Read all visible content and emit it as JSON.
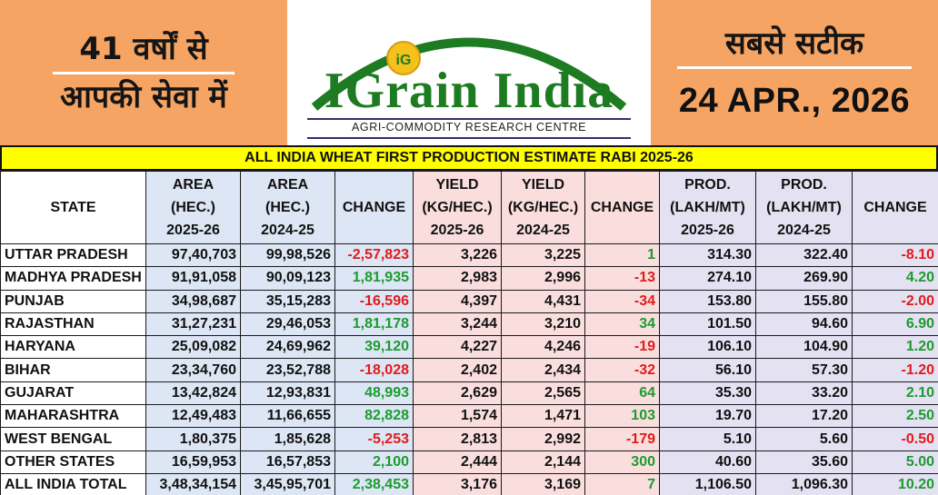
{
  "header": {
    "left_line1": "41 वर्षों से",
    "left_line2": "आपकी सेवा में",
    "right_line1": "सबसे सटीक",
    "date": "24 APR., 2026",
    "logo_name": "IGrain India",
    "logo_badge": "iG",
    "logo_tagline": "AGRI-COMMODITY RESEARCH CENTRE"
  },
  "title": "ALL INDIA WHEAT FIRST PRODUCTION ESTIMATE RABI 2025-26",
  "columns": {
    "state": "STATE",
    "area_a": [
      "AREA",
      "(HEC.)",
      "2025-26"
    ],
    "area_b": [
      "AREA",
      "(HEC.)",
      "2024-25"
    ],
    "change1": "CHANGE",
    "yield_a": [
      "YIELD",
      "(KG/HEC.)",
      "2025-26"
    ],
    "yield_b": [
      "YIELD",
      "(KG/HEC.)",
      "2024-25"
    ],
    "change2": "CHANGE",
    "prod_a": [
      "PROD.",
      "(LAKH/MT)",
      "2025-26"
    ],
    "prod_b": [
      "PROD.",
      "(LAKH/MT)",
      "2024-25"
    ],
    "change3": "CHANGE"
  },
  "rows": [
    [
      "UTTAR PRADESH",
      "97,40,703",
      "99,98,526",
      "-2,57,823",
      "3,226",
      "3,225",
      "1",
      "314.30",
      "322.40",
      "-8.10"
    ],
    [
      "MADHYA PRADESH",
      "91,91,058",
      "90,09,123",
      "1,81,935",
      "2,983",
      "2,996",
      "-13",
      "274.10",
      "269.90",
      "4.20"
    ],
    [
      "PUNJAB",
      "34,98,687",
      "35,15,283",
      "-16,596",
      "4,397",
      "4,431",
      "-34",
      "153.80",
      "155.80",
      "-2.00"
    ],
    [
      "RAJASTHAN",
      "31,27,231",
      "29,46,053",
      "1,81,178",
      "3,244",
      "3,210",
      "34",
      "101.50",
      "94.60",
      "6.90"
    ],
    [
      "HARYANA",
      "25,09,082",
      "24,69,962",
      "39,120",
      "4,227",
      "4,246",
      "-19",
      "106.10",
      "104.90",
      "1.20"
    ],
    [
      "BIHAR",
      "23,34,760",
      "23,52,788",
      "-18,028",
      "2,402",
      "2,434",
      "-32",
      "56.10",
      "57.30",
      "-1.20"
    ],
    [
      "GUJARAT",
      "13,42,824",
      "12,93,831",
      "48,993",
      "2,629",
      "2,565",
      "64",
      "35.30",
      "33.20",
      "2.10"
    ],
    [
      "MAHARASHTRA",
      "12,49,483",
      "11,66,655",
      "82,828",
      "1,574",
      "1,471",
      "103",
      "19.70",
      "17.20",
      "2.50"
    ],
    [
      "WEST BENGAL",
      "1,80,375",
      "1,85,628",
      "-5,253",
      "2,813",
      "2,992",
      "-179",
      "5.10",
      "5.60",
      "-0.50"
    ],
    [
      "OTHER STATES",
      "16,59,953",
      "16,57,853",
      "2,100",
      "2,444",
      "2,144",
      "300",
      "40.60",
      "35.60",
      "5.00"
    ],
    [
      "ALL INDIA TOTAL",
      "3,48,34,154",
      "3,45,95,701",
      "2,38,453",
      "3,176",
      "3,169",
      "7",
      "1,106.50",
      "1,096.30",
      "10.20"
    ]
  ],
  "colors": {
    "header_orange": "#f5a463",
    "title_yellow": "#ffff00",
    "positive": "#1c9b30",
    "negative": "#e01b1b",
    "area_bg": "#dde6f4",
    "yield_bg": "#fadede",
    "prod_bg": "#e4e1f2"
  }
}
